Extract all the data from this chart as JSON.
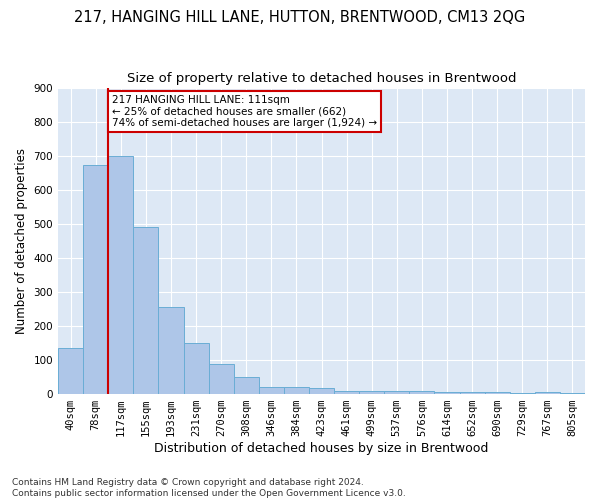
{
  "title": "217, HANGING HILL LANE, HUTTON, BRENTWOOD, CM13 2QG",
  "subtitle": "Size of property relative to detached houses in Brentwood",
  "xlabel": "Distribution of detached houses by size in Brentwood",
  "ylabel": "Number of detached properties",
  "bar_labels": [
    "40sqm",
    "78sqm",
    "117sqm",
    "155sqm",
    "193sqm",
    "231sqm",
    "270sqm",
    "308sqm",
    "346sqm",
    "384sqm",
    "423sqm",
    "461sqm",
    "499sqm",
    "537sqm",
    "576sqm",
    "614sqm",
    "652sqm",
    "690sqm",
    "729sqm",
    "767sqm",
    "805sqm"
  ],
  "bar_values": [
    135,
    675,
    700,
    490,
    255,
    150,
    88,
    50,
    22,
    20,
    18,
    10,
    10,
    8,
    8,
    6,
    5,
    5,
    3,
    5,
    3
  ],
  "bar_color": "#aec6e8",
  "bar_edge_color": "#6aadd5",
  "marker_label": "217 HANGING HILL LANE: 111sqm",
  "annotation_line1": "← 25% of detached houses are smaller (662)",
  "annotation_line2": "74% of semi-detached houses are larger (1,924) →",
  "annotation_box_color": "#ffffff",
  "annotation_box_edge_color": "#cc0000",
  "vline_color": "#cc0000",
  "vline_x_index": 2,
  "ylim": [
    0,
    900
  ],
  "yticks": [
    0,
    100,
    200,
    300,
    400,
    500,
    600,
    700,
    800,
    900
  ],
  "background_color": "#dde8f5",
  "grid_color": "#ffffff",
  "footer_line1": "Contains HM Land Registry data © Crown copyright and database right 2024.",
  "footer_line2": "Contains public sector information licensed under the Open Government Licence v3.0.",
  "title_fontsize": 10.5,
  "subtitle_fontsize": 9.5,
  "xlabel_fontsize": 9,
  "ylabel_fontsize": 8.5,
  "tick_fontsize": 7.5,
  "annotation_fontsize": 7.5,
  "footer_fontsize": 6.5
}
